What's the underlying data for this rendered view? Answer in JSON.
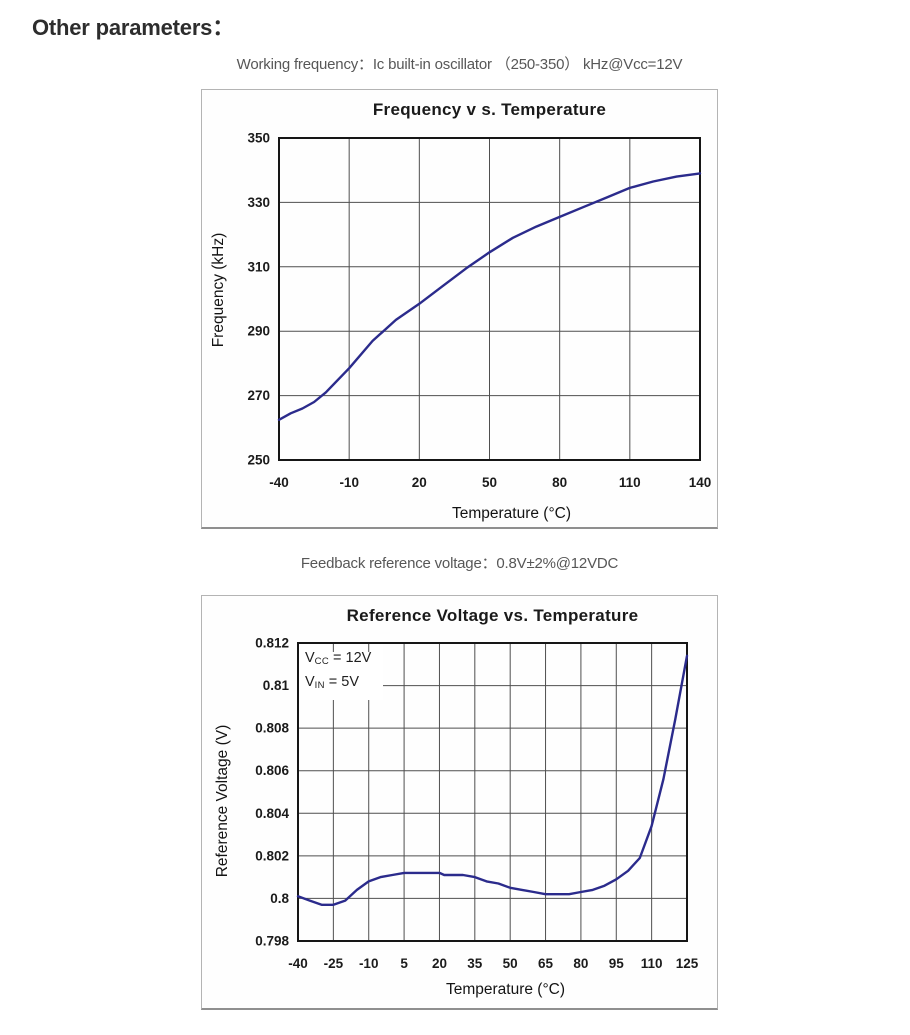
{
  "page": {
    "title": "Other parameters："
  },
  "captions": {
    "working_frequency": "Working frequency：Ic built-in oscillator （250-350） kHz@Vcc=12V",
    "feedback_voltage": "Feedback reference voltage：0.8V±2%@12VDC"
  },
  "chart_data": [
    {
      "type": "line",
      "title": "Frequency v s. Temperature",
      "xlabel": "Temperature (°C)",
      "ylabel": "Frequency (kHz)",
      "xlim": [
        -40,
        140
      ],
      "ylim": [
        250,
        350
      ],
      "xticks": [
        -40,
        -10,
        20,
        50,
        80,
        110,
        140
      ],
      "yticks": [
        250,
        270,
        290,
        310,
        330,
        350
      ],
      "grid": true,
      "grid_color": "#4f4f4f",
      "border_color": "#161616",
      "line_color": "#2b2b8c",
      "series": [
        {
          "name": "oscillator-frequency",
          "x": [
            -40,
            -35,
            -30,
            -25,
            -20,
            -10,
            0,
            10,
            20,
            30,
            40,
            50,
            60,
            70,
            80,
            90,
            100,
            110,
            120,
            130,
            140
          ],
          "y": [
            262.5,
            264.5,
            266,
            268,
            271,
            278.5,
            287,
            293.5,
            298.5,
            304,
            309.5,
            314.5,
            319,
            322.5,
            325.5,
            328.5,
            331.5,
            334.5,
            336.5,
            338,
            339
          ]
        }
      ]
    },
    {
      "type": "line",
      "title": "Reference Voltage vs. Temperature",
      "xlabel": "Temperature (°C)",
      "ylabel": "Reference Voltage (V)",
      "xlim": [
        -40,
        125
      ],
      "ylim": [
        0.798,
        0.812
      ],
      "xticks": [
        -40,
        -25,
        -10,
        5,
        20,
        35,
        50,
        65,
        80,
        95,
        110,
        125
      ],
      "yticks": [
        0.798,
        0.8,
        0.802,
        0.804,
        0.806,
        0.808,
        0.81,
        0.812
      ],
      "grid": true,
      "grid_color": "#4f4f4f",
      "border_color": "#161616",
      "line_color": "#2b2b8c",
      "annotations": [
        {
          "prefix": "V",
          "sub": "CC",
          "suffix": " = 12V"
        },
        {
          "prefix": "V",
          "sub": "IN",
          "suffix": " = 5V"
        }
      ],
      "series": [
        {
          "name": "reference-voltage",
          "x": [
            -40,
            -35,
            -30,
            -25,
            -20,
            -15,
            -10,
            -5,
            0,
            5,
            10,
            15,
            20,
            22,
            25,
            30,
            35,
            40,
            45,
            50,
            55,
            60,
            65,
            70,
            75,
            80,
            85,
            90,
            95,
            100,
            105,
            110,
            115,
            120,
            125
          ],
          "y": [
            0.8001,
            0.7999,
            0.7997,
            0.7997,
            0.7999,
            0.8004,
            0.8008,
            0.801,
            0.8011,
            0.8012,
            0.8012,
            0.8012,
            0.8012,
            0.8011,
            0.8011,
            0.8011,
            0.801,
            0.8008,
            0.8007,
            0.8005,
            0.8004,
            0.8003,
            0.8002,
            0.8002,
            0.8002,
            0.8003,
            0.8004,
            0.8006,
            0.8009,
            0.8013,
            0.8019,
            0.8034,
            0.8056,
            0.8084,
            0.8114
          ]
        }
      ]
    }
  ]
}
